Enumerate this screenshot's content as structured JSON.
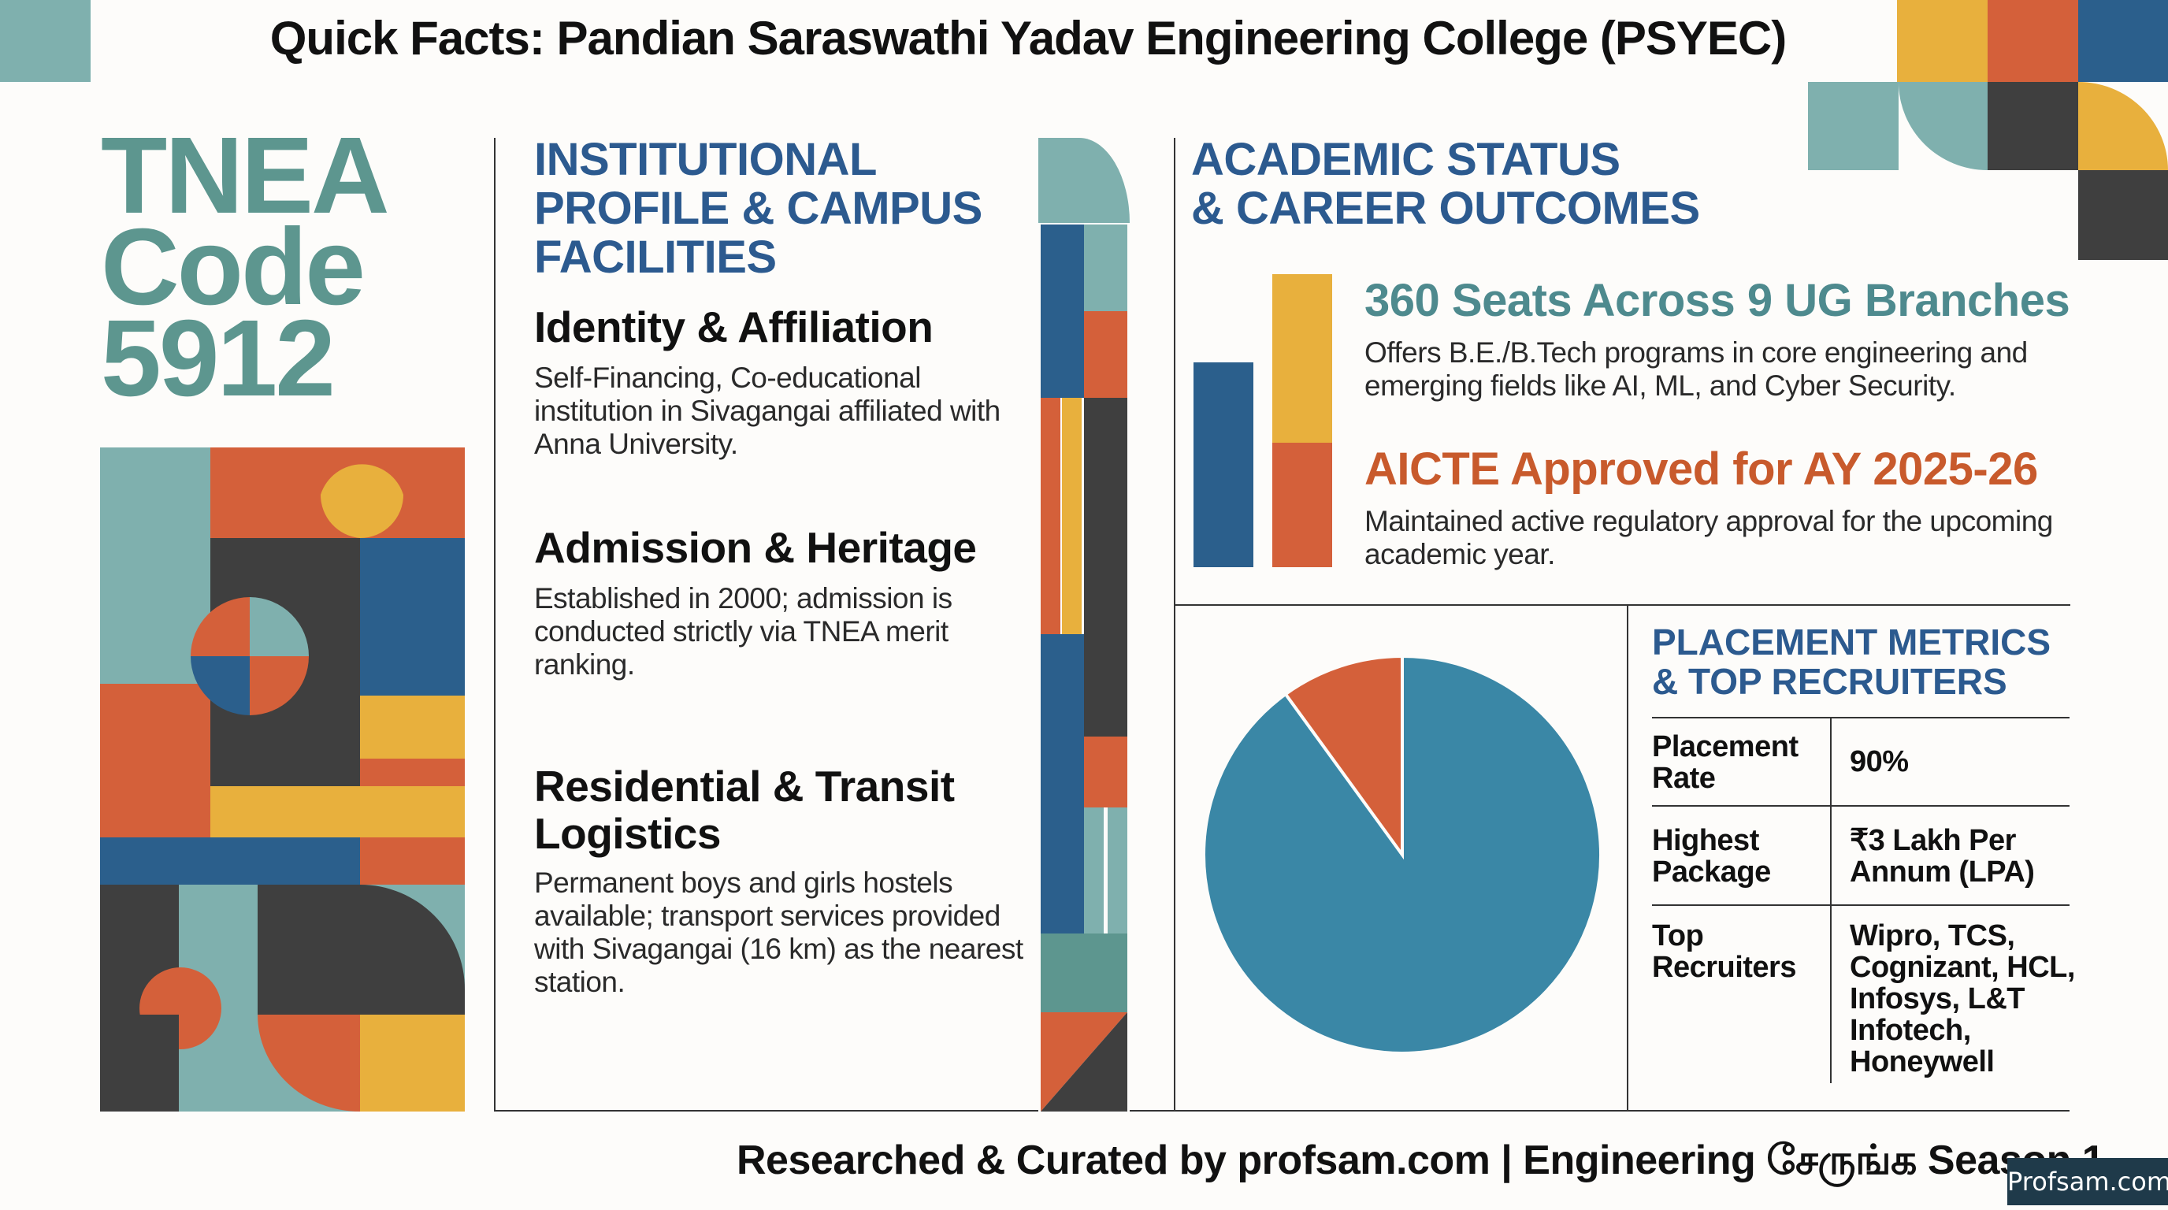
{
  "header": {
    "title": "Quick Facts: Pandian Saraswathi Yadav Engineering College (PSYEC)"
  },
  "code_block": {
    "line1": "TNEA",
    "line2": "Code",
    "line3": "5912"
  },
  "institutional": {
    "heading_line1": "INSTITUTIONAL",
    "heading_line2": "PROFILE & CAMPUS",
    "heading_line3": "FACILITIES",
    "items": [
      {
        "title": "Identity & Affiliation",
        "lines": [
          "Self-Financing, Co-educational",
          "institution in Sivagangai affiliated with",
          "Anna University."
        ]
      },
      {
        "title": "Admission & Heritage",
        "lines": [
          "Established in 2000; admission is",
          "conducted strictly via TNEA merit",
          "ranking."
        ]
      },
      {
        "title_line1": "Residential & Transit",
        "title_line2": "Logistics",
        "lines": [
          "Permanent boys and girls hostels",
          "available; transport services provided",
          "with Sivagangai (16 km) as the nearest",
          "station."
        ]
      }
    ]
  },
  "academic": {
    "heading_line1": "ACADEMIC STATUS",
    "heading_line2": "& CAREER OUTCOMES",
    "seats": {
      "headline": "360 Seats Across 9 UG Branches",
      "lines": [
        "Offers B.E./B.Tech programs in core engineering and",
        "emerging fields like AI, ML, and Cyber Security."
      ]
    },
    "aicte": {
      "headline": "AICTE Approved for AY 2025-26",
      "lines": [
        "Maintained active regulatory approval for the upcoming",
        "academic year."
      ]
    }
  },
  "placement": {
    "heading_line1": "PLACEMENT METRICS",
    "heading_line2": "& TOP RECRUITERS",
    "rows": [
      {
        "label_lines": [
          "Placement",
          "Rate"
        ],
        "value_lines": [
          "90%"
        ]
      },
      {
        "label_lines": [
          "Highest",
          "Package"
        ],
        "value_lines": [
          "₹3 Lakh Per",
          "Annum (LPA)"
        ]
      },
      {
        "label_lines": [
          "Top",
          "Recruiters"
        ],
        "value_lines": [
          "Wipro, TCS,",
          "Cognizant, HCL,",
          "Infosys, L&T",
          "Infotech,",
          "Honeywell"
        ]
      }
    ],
    "pie_fraction": 0.9
  },
  "footer": {
    "credit": "Researched & Curated by profsam.com  |  Engineering சேருங்க Season 1",
    "badge": "Profsam.com"
  },
  "colors": {
    "teal": "#7fb0ae",
    "blue": "#2b5f8c",
    "orange": "#d4603a",
    "yellow": "#e8b03d",
    "dark": "#3f3f3f",
    "pie_blue": "#3a87a6",
    "heading_blue": "#2c5a8f"
  }
}
